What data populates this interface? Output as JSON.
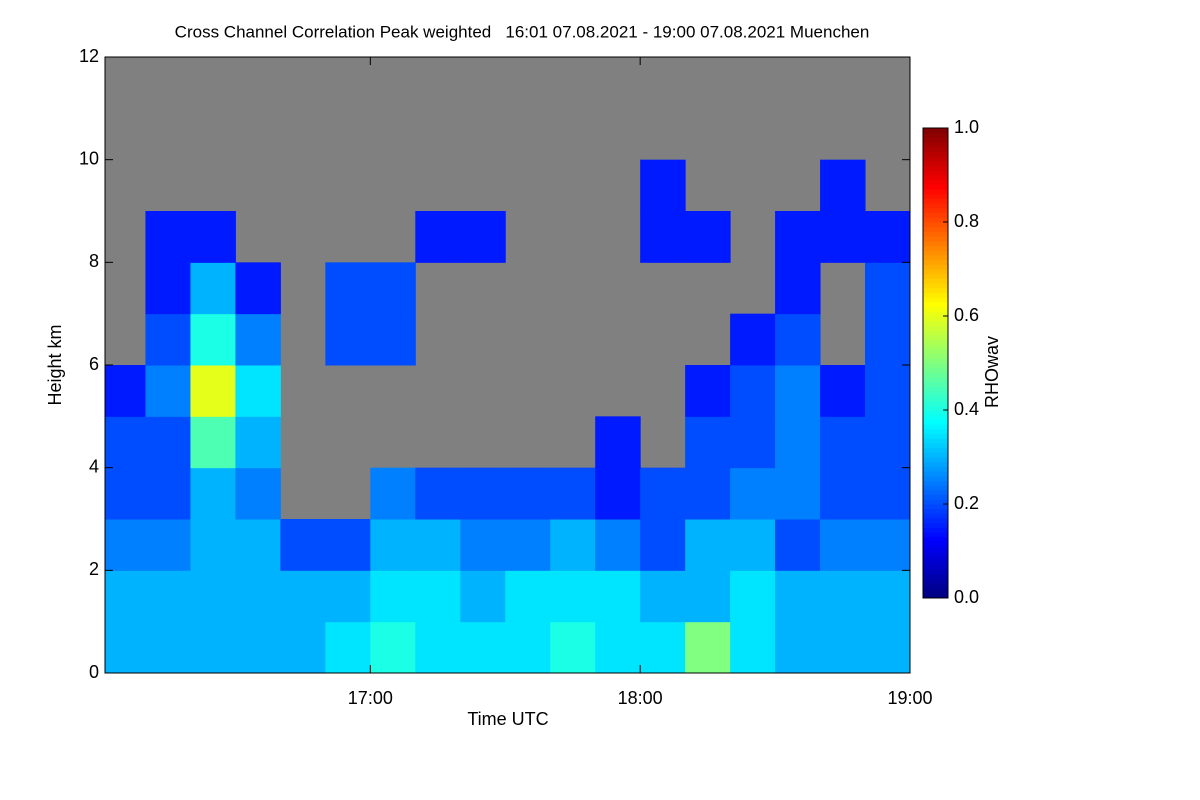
{
  "chart_data": {
    "type": "heatmap",
    "title": "Cross Channel Correlation Peak weighted   16:01 07.08.2021 - 19:00 07.08.2021 Muenchen",
    "xlabel": "Time UTC",
    "ylabel": "Height km",
    "colorbar_label": "RHOwav",
    "xlim": [
      "16:01",
      "19:00"
    ],
    "xticks": [
      "17:00",
      "18:00",
      "19:00"
    ],
    "ylim": [
      0,
      12
    ],
    "yticks": [
      0,
      2,
      4,
      6,
      8,
      10,
      12
    ],
    "zlim": [
      0,
      1
    ],
    "zticks": [
      {
        "value": 0,
        "label": "0.0"
      },
      {
        "value": 0.2,
        "label": "0.2"
      },
      {
        "value": 0.4,
        "label": "0.4"
      },
      {
        "value": 0.6,
        "label": "0.6"
      },
      {
        "value": 0.8,
        "label": "0.8"
      },
      {
        "value": 1,
        "label": "1.0"
      }
    ],
    "colormap": "jet",
    "background": "#808080",
    "x_bins": [
      "16:01",
      "16:10",
      "16:20",
      "16:30",
      "16:40",
      "16:50",
      "17:00",
      "17:10",
      "17:20",
      "17:30",
      "17:40",
      "17:50",
      "18:00",
      "18:10",
      "18:20",
      "18:30",
      "18:40",
      "18:50",
      "19:00"
    ],
    "y_bins": [
      0,
      1,
      2,
      3,
      4,
      5,
      6,
      7,
      8,
      9,
      10,
      11,
      12
    ],
    "z": [
      [
        0.3,
        0.3,
        0.3,
        0.3,
        0.3,
        0.35,
        0.4,
        0.35,
        0.35,
        0.35,
        0.4,
        0.35,
        0.35,
        0.5,
        0.35,
        0.3,
        0.3,
        0.3
      ],
      [
        0.3,
        0.3,
        0.3,
        0.3,
        0.3,
        0.3,
        0.35,
        0.35,
        0.3,
        0.35,
        0.35,
        0.35,
        0.3,
        0.3,
        0.35,
        0.3,
        0.3,
        0.3
      ],
      [
        0.25,
        0.25,
        0.3,
        0.3,
        0.2,
        0.2,
        0.3,
        0.3,
        0.25,
        0.25,
        0.3,
        0.25,
        0.2,
        0.3,
        0.3,
        0.2,
        0.25,
        0.25
      ],
      [
        0.2,
        0.2,
        0.3,
        0.25,
        null,
        null,
        0.25,
        0.2,
        0.2,
        0.2,
        0.2,
        0.15,
        0.2,
        0.2,
        0.25,
        0.25,
        0.2,
        0.2
      ],
      [
        0.2,
        0.2,
        0.45,
        0.3,
        null,
        null,
        null,
        null,
        null,
        null,
        null,
        0.15,
        null,
        0.2,
        0.2,
        0.25,
        0.2,
        0.2
      ],
      [
        0.15,
        0.25,
        0.6,
        0.35,
        null,
        null,
        null,
        null,
        null,
        null,
        null,
        null,
        null,
        0.15,
        0.2,
        0.25,
        0.15,
        0.2
      ],
      [
        null,
        0.2,
        0.4,
        0.25,
        null,
        0.2,
        0.2,
        null,
        null,
        null,
        null,
        null,
        null,
        null,
        0.15,
        0.2,
        null,
        0.2
      ],
      [
        null,
        0.15,
        0.3,
        0.15,
        null,
        0.2,
        0.2,
        null,
        null,
        null,
        null,
        null,
        null,
        null,
        null,
        0.15,
        null,
        0.2
      ],
      [
        null,
        0.15,
        0.15,
        null,
        null,
        null,
        null,
        0.15,
        0.15,
        null,
        null,
        null,
        0.15,
        0.15,
        null,
        0.15,
        0.15,
        0.15
      ],
      [
        null,
        null,
        null,
        null,
        null,
        null,
        null,
        null,
        null,
        null,
        null,
        null,
        0.15,
        null,
        null,
        null,
        0.15,
        null
      ],
      [
        null,
        null,
        null,
        null,
        null,
        null,
        null,
        null,
        null,
        null,
        null,
        null,
        null,
        null,
        null,
        null,
        null,
        null
      ],
      [
        null,
        null,
        null,
        null,
        null,
        null,
        null,
        null,
        null,
        null,
        null,
        null,
        null,
        null,
        null,
        null,
        null,
        null
      ]
    ]
  }
}
